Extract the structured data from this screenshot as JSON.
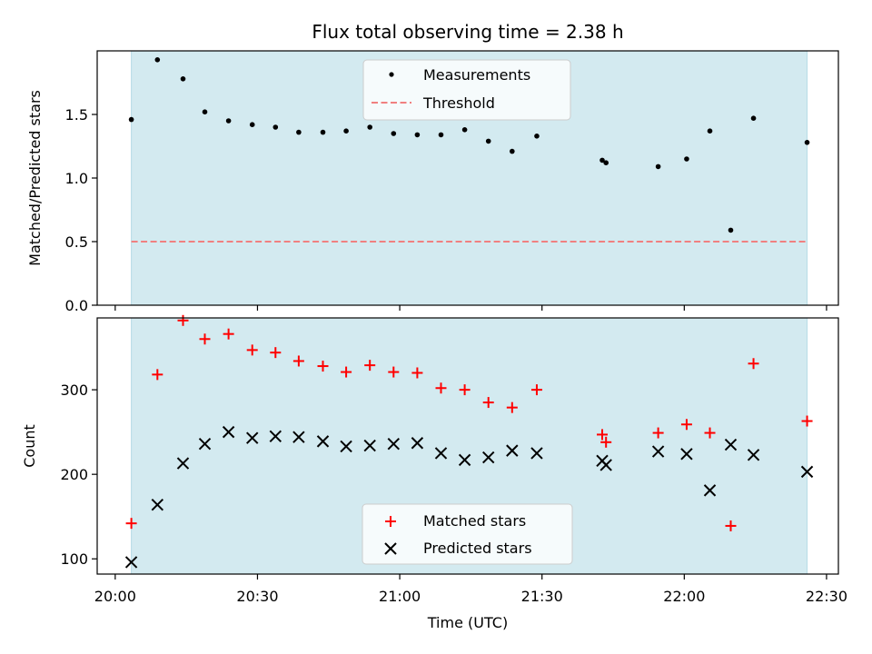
{
  "chart_data": {
    "type": "scatter",
    "title": "Flux total observing time = 2.38 h",
    "xlabel": "Time (UTC)",
    "x_ticks": [
      "20:00",
      "20:30",
      "21:00",
      "21:30",
      "22:00",
      "22:30"
    ],
    "x_tick_minutes": [
      0,
      30,
      60,
      90,
      120,
      150
    ],
    "xlim_minutes": [
      -3.8,
      152.5
    ],
    "shaded_span_minutes": [
      3.4,
      145.9
    ],
    "colors": {
      "shade": "#d3eaf0",
      "measurements": "#000000",
      "threshold": "#f08080",
      "matched": "#ff0000",
      "predicted": "#000000"
    },
    "panels": [
      {
        "ylabel": "Matched/Predicted stars",
        "ylim": [
          0,
          2.0
        ],
        "y_ticks": [
          "0.0",
          "0.5",
          "1.0",
          "1.5"
        ],
        "y_tick_values": [
          0,
          0.5,
          1.0,
          1.5
        ],
        "legend": [
          "Measurements",
          "Threshold"
        ],
        "threshold": 0.5,
        "series": [
          {
            "name": "Measurements",
            "x": [
              3.4,
              8.9,
              14.3,
              18.9,
              23.9,
              28.9,
              33.8,
              38.7,
              43.8,
              48.7,
              53.7,
              58.7,
              63.7,
              68.7,
              73.7,
              78.7,
              83.7,
              88.9,
              102.7,
              103.5,
              114.5,
              120.5,
              125.4,
              129.8,
              134.6,
              145.9
            ],
            "y": [
              1.46,
              1.93,
              1.78,
              1.52,
              1.45,
              1.42,
              1.4,
              1.36,
              1.36,
              1.37,
              1.4,
              1.35,
              1.34,
              1.34,
              1.38,
              1.29,
              1.21,
              1.33,
              1.14,
              1.12,
              1.09,
              1.15,
              1.37,
              0.59,
              1.47,
              1.28
            ]
          }
        ]
      },
      {
        "ylabel": "Count",
        "ylim": [
          82,
          385
        ],
        "y_ticks": [
          "100",
          "200",
          "300"
        ],
        "y_tick_values": [
          100,
          200,
          300
        ],
        "legend": [
          "Matched stars",
          "Predicted stars"
        ],
        "series": [
          {
            "name": "Matched stars",
            "x": [
              3.4,
              8.9,
              14.3,
              18.9,
              23.9,
              28.9,
              33.8,
              38.7,
              43.8,
              48.7,
              53.7,
              58.7,
              63.7,
              68.7,
              73.7,
              78.7,
              83.7,
              88.9,
              102.7,
              103.5,
              114.5,
              120.5,
              125.4,
              129.8,
              134.6,
              145.9
            ],
            "y": [
              142,
              318,
              382,
              360,
              366,
              347,
              344,
              334,
              328,
              321,
              329,
              321,
              320,
              302,
              300,
              285,
              279,
              300,
              247,
              238,
              249,
              259,
              249,
              139,
              331,
              263
            ]
          },
          {
            "name": "Predicted stars",
            "x": [
              3.4,
              8.9,
              14.3,
              18.9,
              23.9,
              28.9,
              33.8,
              38.7,
              43.8,
              48.7,
              53.7,
              58.7,
              63.7,
              68.7,
              73.7,
              78.7,
              83.7,
              88.9,
              102.7,
              103.5,
              114.5,
              120.5,
              125.4,
              129.8,
              134.6,
              145.9
            ],
            "y": [
              96,
              164,
              213,
              236,
              250,
              243,
              245,
              244,
              239,
              233,
              234,
              236,
              237,
              225,
              217,
              220,
              228,
              225,
              216,
              211,
              227,
              224,
              181,
              235,
              223,
              203
            ]
          }
        ]
      }
    ]
  }
}
